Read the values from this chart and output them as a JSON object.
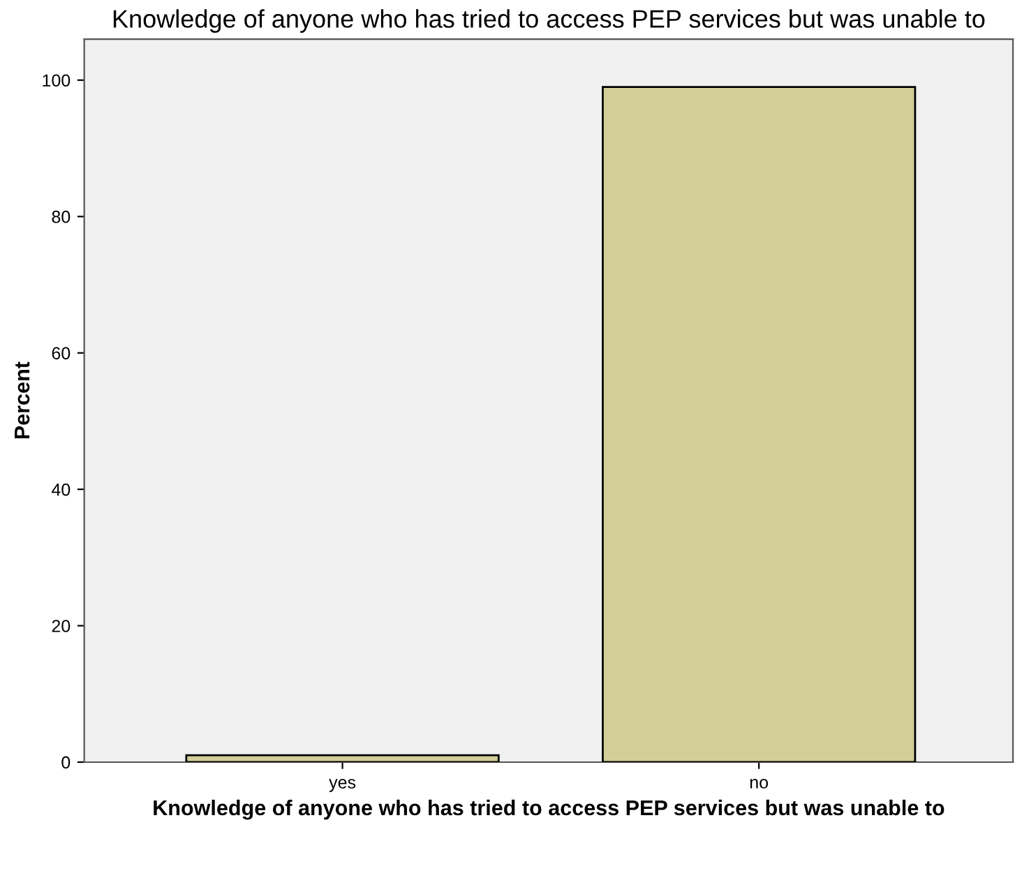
{
  "chart_data": {
    "type": "bar",
    "title": "Knowledge of anyone who has tried to access PEP services but was unable to",
    "xlabel": "Knowledge of anyone who has tried to access PEP services but was unable to",
    "ylabel": "Percent",
    "categories": [
      "yes",
      "no"
    ],
    "values": [
      1.0,
      99.0
    ],
    "color": "#d3ce97",
    "ylim": [
      0,
      106
    ],
    "yticks": [
      0,
      20,
      40,
      60,
      80,
      100
    ],
    "grid": false,
    "legend": false
  }
}
